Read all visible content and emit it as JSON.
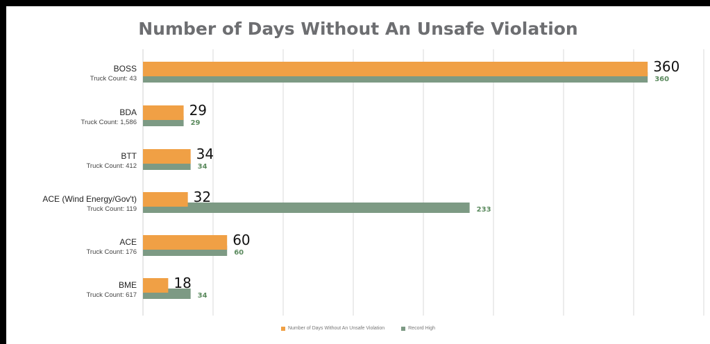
{
  "colors": {
    "frame_border": "#000000",
    "background": "#ffffff",
    "bar_primary": "#f0a045",
    "bar_record": "#7d9a84",
    "record_label": "#5b8a5e",
    "gridline": "#d9d9d9",
    "title": "#6d6e71"
  },
  "chart_data": {
    "type": "bar",
    "orientation": "horizontal",
    "title": "Number of Days Without An Unsafe Violation",
    "xlim": [
      0,
      400
    ],
    "grid": true,
    "legend_position": "bottom",
    "categories": [
      {
        "name": "BOSS",
        "sub": "Truck Count: 43"
      },
      {
        "name": "BDA",
        "sub": "Truck Count: 1,586"
      },
      {
        "name": "BTT",
        "sub": "Truck Count: 412"
      },
      {
        "name": "ACE (Wind Energy/Gov't)",
        "sub": "Truck Count: 119"
      },
      {
        "name": "ACE",
        "sub": "Truck Count: 176"
      },
      {
        "name": "BME",
        "sub": "Truck Count: 617"
      }
    ],
    "series": [
      {
        "name": "Number of Days Without An Unsafe Violation",
        "values": [
          360,
          29,
          34,
          32,
          60,
          18
        ]
      },
      {
        "name": "Record High",
        "values": [
          360,
          29,
          34,
          233,
          60,
          34
        ]
      }
    ]
  }
}
